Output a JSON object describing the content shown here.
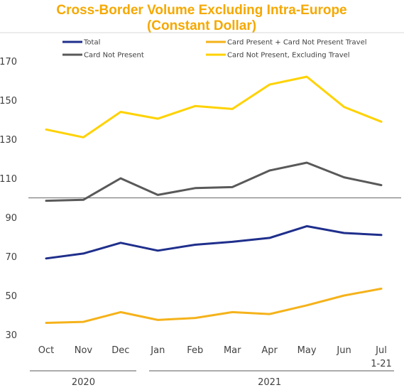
{
  "chart_data": {
    "type": "line",
    "title_line1": "Cross-Border Volume Excluding Intra-Europe",
    "title_line2": "(Constant Dollar)",
    "title_color": "#F5A800",
    "categories": [
      "Oct",
      "Nov",
      "Dec",
      "Jan",
      "Feb",
      "Mar",
      "Apr",
      "May",
      "Jun",
      "Jul"
    ],
    "category_sublabels": {
      "Jul": "1-21"
    },
    "year_groups": [
      {
        "label": "2020",
        "from": "Oct",
        "to": "Dec"
      },
      {
        "label": "2021",
        "from": "Jan",
        "to": "Jul"
      }
    ],
    "yticks": [
      30,
      50,
      70,
      90,
      110,
      130,
      150,
      170
    ],
    "ylim": [
      30,
      170
    ],
    "reference_line": 100,
    "legend_placement": "top",
    "series": [
      {
        "name": "Total",
        "color": "#1F2F8C",
        "values": [
          69,
          71.5,
          77,
          73,
          76,
          77.5,
          79.5,
          85.5,
          82,
          81
        ]
      },
      {
        "name": "Card Not Present",
        "color": "#595959",
        "values": [
          98.5,
          99,
          110,
          101.5,
          105,
          105.5,
          114,
          118,
          110.5,
          106.5
        ]
      },
      {
        "name": "Card Present + Card Not Present Travel",
        "color": "#F5B21A",
        "values": [
          36,
          36.5,
          41.5,
          37.5,
          38.5,
          41.5,
          40.5,
          45,
          50,
          53.5
        ]
      },
      {
        "name": "Card Not Present, Excluding Travel",
        "color": "#FFD200",
        "values": [
          135,
          131,
          144,
          140.5,
          147,
          145.5,
          158,
          162,
          146.5,
          139
        ]
      }
    ]
  }
}
